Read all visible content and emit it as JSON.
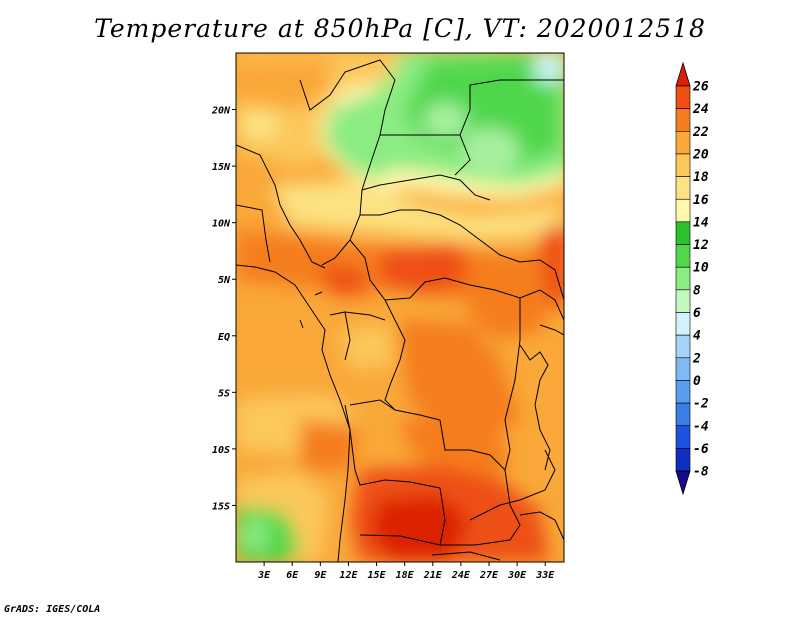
{
  "title": "Temperature at 850hPa [C], VT: 2020012518",
  "credit": "GrADS: IGES/COLA",
  "map": {
    "lon_range": [
      0,
      35
    ],
    "lat_range": [
      -20,
      25
    ],
    "lon_ticks": [
      {
        "value": 3,
        "label": "3E"
      },
      {
        "value": 6,
        "label": "6E"
      },
      {
        "value": 9,
        "label": "9E"
      },
      {
        "value": 12,
        "label": "12E"
      },
      {
        "value": 15,
        "label": "15E"
      },
      {
        "value": 18,
        "label": "18E"
      },
      {
        "value": 21,
        "label": "21E"
      },
      {
        "value": 24,
        "label": "24E"
      },
      {
        "value": 27,
        "label": "27E"
      },
      {
        "value": 30,
        "label": "30E"
      },
      {
        "value": 33,
        "label": "33E"
      }
    ],
    "lat_ticks": [
      {
        "value": 20,
        "label": "20N"
      },
      {
        "value": 15,
        "label": "15N"
      },
      {
        "value": 10,
        "label": "10N"
      },
      {
        "value": 5,
        "label": "5N"
      },
      {
        "value": 0,
        "label": "EQ"
      },
      {
        "value": -5,
        "label": "5S"
      },
      {
        "value": -10,
        "label": "10S"
      },
      {
        "value": -15,
        "label": "15S"
      }
    ]
  },
  "colorbar": {
    "levels": [
      -8,
      -6,
      -4,
      -2,
      0,
      2,
      4,
      6,
      8,
      10,
      12,
      14,
      16,
      18,
      20,
      22,
      24,
      26
    ],
    "labels": [
      "26",
      "24",
      "22",
      "20",
      "18",
      "16",
      "14",
      "12",
      "10",
      "8",
      "6",
      "4",
      "2",
      "0",
      "-2",
      "-4",
      "-6",
      "-8"
    ],
    "colors": [
      "#160a8a",
      "#0f2fc2",
      "#1f52dc",
      "#3a7ee8",
      "#5a9df0",
      "#7fbaf5",
      "#a5d3fa",
      "#d2f3fb",
      "#c5f7c2",
      "#8bec82",
      "#50d74b",
      "#2cc22b",
      "#fff7ad",
      "#fde282",
      "#fcc85b",
      "#f9a839",
      "#f57d1f",
      "#ee4f12",
      "#dc2005"
    ]
  }
}
